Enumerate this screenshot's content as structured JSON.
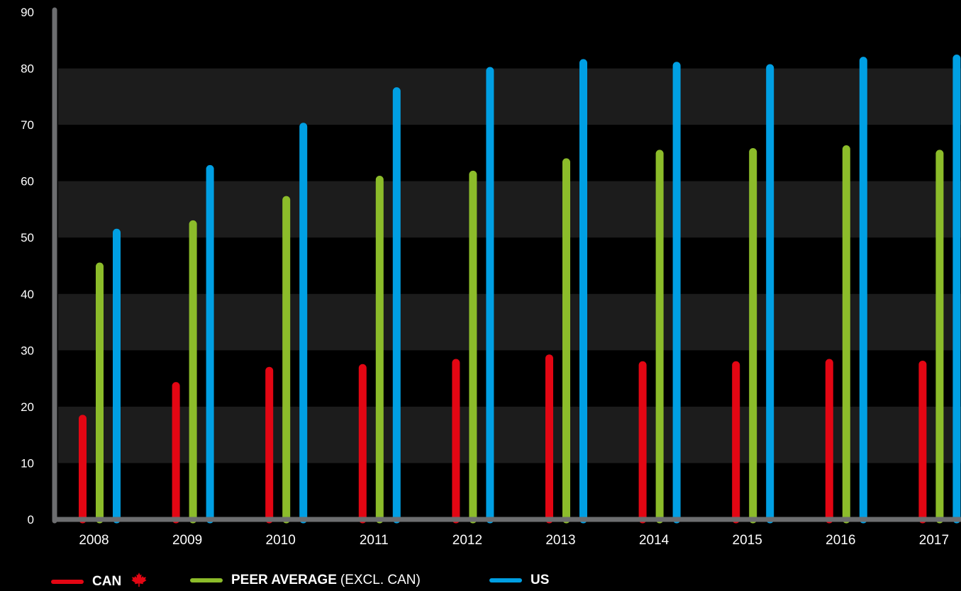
{
  "chart_data": {
    "type": "bar",
    "categories": [
      "2008",
      "2009",
      "2010",
      "2011",
      "2012",
      "2013",
      "2014",
      "2015",
      "2016",
      "2017"
    ],
    "series": [
      {
        "name": "CAN",
        "color": "#e30613",
        "values": [
          18.5,
          24.3,
          27.0,
          27.5,
          28.4,
          29.2,
          28.0,
          28.0,
          28.4,
          28.1
        ]
      },
      {
        "name": "PEER AVERAGE (EXCL. CAN)",
        "color": "#8cbc2a",
        "values": [
          45.5,
          53.0,
          57.3,
          60.9,
          61.8,
          64.0,
          65.5,
          65.8,
          66.3,
          65.5
        ]
      },
      {
        "name": "US",
        "color": "#009fe3",
        "values": [
          51.5,
          62.8,
          70.3,
          76.6,
          80.2,
          81.6,
          81.1,
          80.7,
          82.0,
          82.4
        ]
      }
    ],
    "yticks": [
      "0",
      "10",
      "20",
      "30",
      "40",
      "50",
      "60",
      "70",
      "80",
      "90"
    ],
    "ylim": [
      0,
      90
    ],
    "title": "",
    "xlabel": "",
    "ylabel": "",
    "grid": "alternating horizontal bands",
    "legend_position": "bottom"
  },
  "legend": {
    "can": {
      "label": "CAN",
      "icon": "maple-leaf-icon",
      "color": "#e30613"
    },
    "peer": {
      "label": "PEER AVERAGE",
      "suffix": "(EXCL. CAN)",
      "color": "#8cbc2a"
    },
    "us": {
      "label": "US",
      "color": "#009fe3"
    }
  },
  "colors": {
    "background": "#000000",
    "band": "#1c1c1c",
    "axis": "#6d6e70"
  }
}
